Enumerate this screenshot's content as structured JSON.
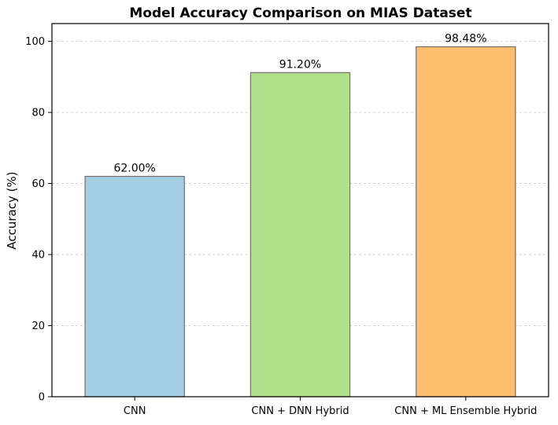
{
  "chart_data": {
    "type": "bar",
    "title": "Model Accuracy Comparison on MIAS Dataset",
    "xlabel": "",
    "ylabel": "Accuracy (%)",
    "categories": [
      "CNN",
      "CNN + DNN Hybrid",
      "CNN + ML Ensemble Hybrid"
    ],
    "values": [
      62.0,
      91.2,
      98.48
    ],
    "data_labels": [
      "62.00%",
      "91.20%",
      "98.48%"
    ],
    "bar_colors": [
      "#a6cee3",
      "#b2df8a",
      "#fdbf6f"
    ],
    "ylim": [
      0,
      105
    ],
    "yticks": [
      0,
      20,
      40,
      60,
      80,
      100
    ],
    "grid": "y-dashed",
    "legend": "none"
  }
}
